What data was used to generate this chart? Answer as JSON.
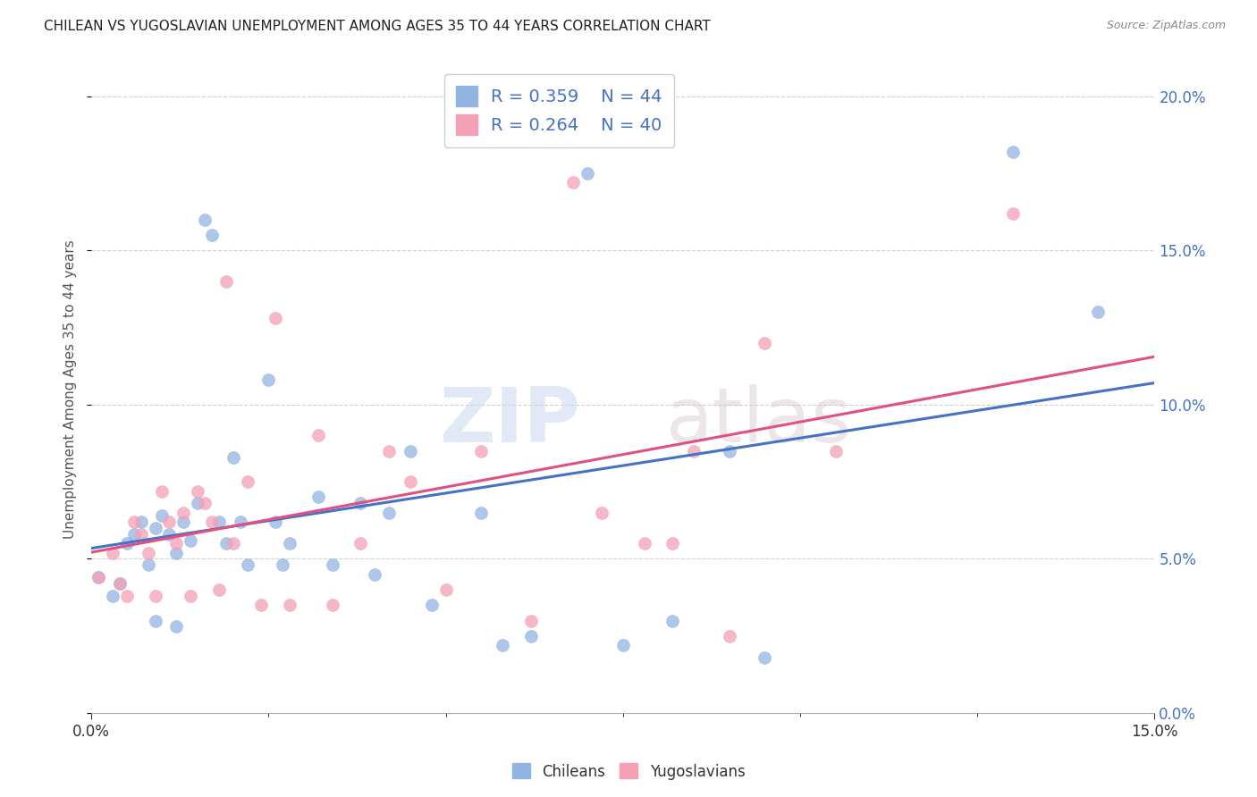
{
  "title": "CHILEAN VS YUGOSLAVIAN UNEMPLOYMENT AMONG AGES 35 TO 44 YEARS CORRELATION CHART",
  "source": "Source: ZipAtlas.com",
  "ylabel_label": "Unemployment Among Ages 35 to 44 years",
  "xmin": 0.0,
  "xmax": 0.15,
  "ymin": 0.0,
  "ymax": 0.21,
  "chilean_color": "#92b4e3",
  "yugoslav_color": "#f4a0b5",
  "chilean_line_color": "#4472c4",
  "yugoslav_line_color": "#e05080",
  "legend_text_color": "#4472c4",
  "R_chilean": 0.359,
  "N_chilean": 44,
  "R_yugoslav": 0.264,
  "N_yugoslav": 40,
  "chilean_intercept": 0.042,
  "chilean_slope": 0.6,
  "yugoslav_intercept": 0.038,
  "yugoslav_slope": 0.42,
  "chilean_x": [
    0.001,
    0.003,
    0.004,
    0.005,
    0.006,
    0.007,
    0.008,
    0.009,
    0.009,
    0.01,
    0.011,
    0.012,
    0.012,
    0.013,
    0.014,
    0.015,
    0.016,
    0.017,
    0.018,
    0.019,
    0.02,
    0.021,
    0.022,
    0.025,
    0.026,
    0.027,
    0.028,
    0.032,
    0.034,
    0.038,
    0.04,
    0.042,
    0.045,
    0.048,
    0.055,
    0.058,
    0.062,
    0.07,
    0.075,
    0.082,
    0.09,
    0.095,
    0.13,
    0.142
  ],
  "chilean_y": [
    0.044,
    0.038,
    0.042,
    0.055,
    0.058,
    0.062,
    0.048,
    0.06,
    0.03,
    0.064,
    0.058,
    0.052,
    0.028,
    0.062,
    0.056,
    0.068,
    0.16,
    0.155,
    0.062,
    0.055,
    0.083,
    0.062,
    0.048,
    0.108,
    0.062,
    0.048,
    0.055,
    0.07,
    0.048,
    0.068,
    0.045,
    0.065,
    0.085,
    0.035,
    0.065,
    0.022,
    0.025,
    0.175,
    0.022,
    0.03,
    0.085,
    0.018,
    0.182,
    0.13
  ],
  "yugoslav_x": [
    0.001,
    0.003,
    0.004,
    0.005,
    0.006,
    0.007,
    0.008,
    0.009,
    0.01,
    0.011,
    0.012,
    0.013,
    0.014,
    0.015,
    0.016,
    0.017,
    0.018,
    0.019,
    0.02,
    0.022,
    0.024,
    0.026,
    0.028,
    0.032,
    0.034,
    0.038,
    0.042,
    0.045,
    0.05,
    0.055,
    0.062,
    0.068,
    0.072,
    0.078,
    0.082,
    0.085,
    0.09,
    0.095,
    0.105,
    0.13
  ],
  "yugoslav_y": [
    0.044,
    0.052,
    0.042,
    0.038,
    0.062,
    0.058,
    0.052,
    0.038,
    0.072,
    0.062,
    0.055,
    0.065,
    0.038,
    0.072,
    0.068,
    0.062,
    0.04,
    0.14,
    0.055,
    0.075,
    0.035,
    0.128,
    0.035,
    0.09,
    0.035,
    0.055,
    0.085,
    0.075,
    0.04,
    0.085,
    0.03,
    0.172,
    0.065,
    0.055,
    0.055,
    0.085,
    0.025,
    0.12,
    0.085,
    0.162
  ],
  "watermark_zip": "ZIP",
  "watermark_atlas": "atlas",
  "background_color": "#ffffff",
  "grid_color": "#d0d0d0"
}
